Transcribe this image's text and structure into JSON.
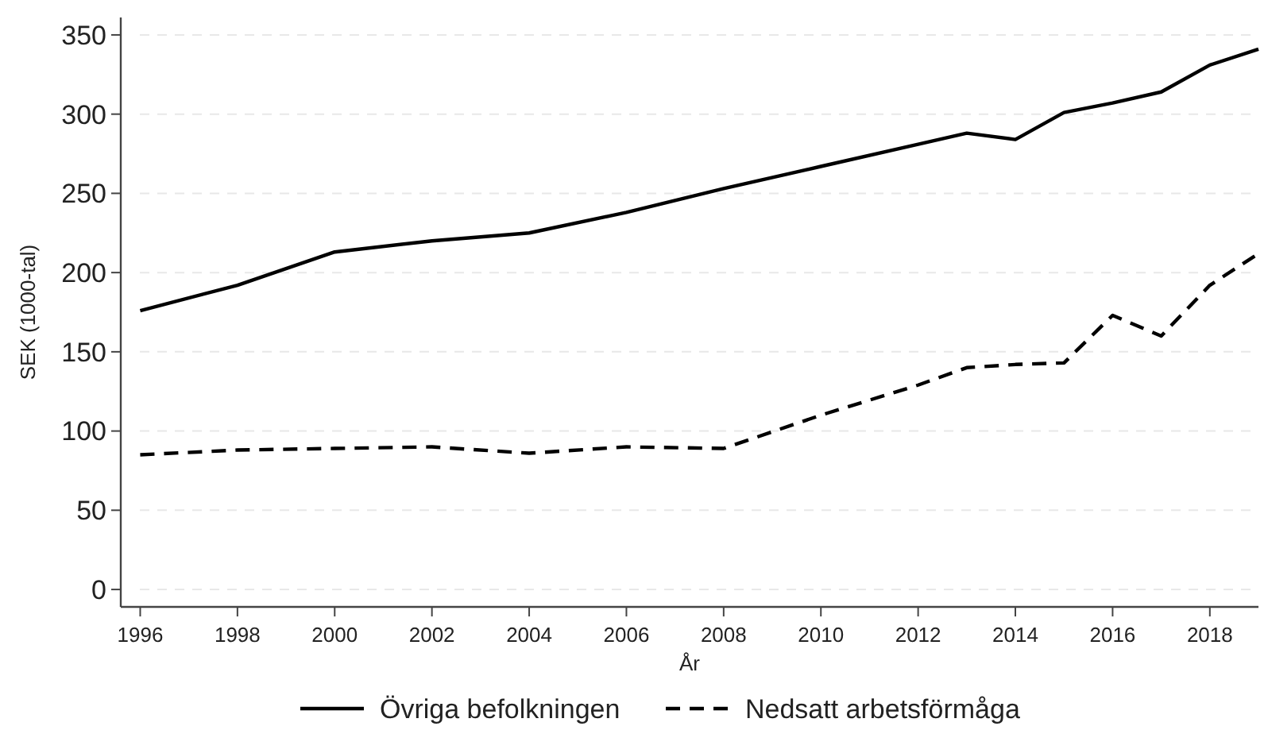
{
  "chart_data": {
    "type": "line",
    "xlabel": "År",
    "ylabel": "SEK (1000-tal)",
    "x": [
      1996,
      1998,
      2000,
      2002,
      2004,
      2006,
      2008,
      2010,
      2012,
      2013,
      2014,
      2015,
      2016,
      2017,
      2018,
      2019
    ],
    "series": [
      {
        "name": "Övriga befolkningen",
        "color": "#000000",
        "line_style": "solid",
        "values": [
          176,
          192,
          213,
          220,
          225,
          238,
          253,
          267,
          281,
          288,
          284,
          301,
          307,
          314,
          331,
          341
        ]
      },
      {
        "name": "Nedsatt arbetsförmåga",
        "color": "#000000",
        "line_style": "dashed",
        "values": [
          85,
          88,
          89,
          90,
          86,
          90,
          89,
          110,
          129,
          140,
          142,
          143,
          173,
          160,
          192,
          212
        ]
      }
    ],
    "xlim": [
      1995.6,
      2019
    ],
    "xticks": [
      1996,
      1998,
      2000,
      2002,
      2004,
      2006,
      2008,
      2010,
      2012,
      2014,
      2016,
      2018
    ],
    "ylim": [
      -11,
      361
    ],
    "yticks": [
      0,
      50,
      100,
      150,
      200,
      250,
      300,
      350
    ],
    "grid": "y",
    "legend": "bottom"
  }
}
